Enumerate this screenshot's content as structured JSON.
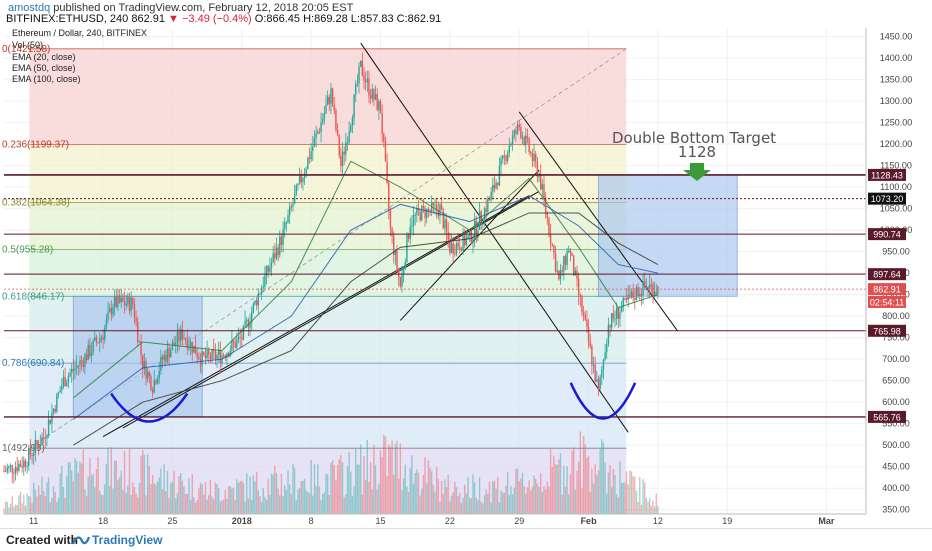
{
  "header": {
    "user": "amostdq",
    "published": "published on TradingView.com, February 12, 2018 20:05 EST",
    "symbol": "BITFINEX:ETHUSD, 240",
    "last": "862.91",
    "change": "▼ −3.49 (−0.4%)",
    "ohlc": "O:866.45 H:869.28 L:857.83 C:862.91"
  },
  "legend": {
    "title": "Ethereum / Dollar, 240, BITFINEX",
    "items": [
      "Vol (50)",
      "EMA (20, close)",
      "EMA (50, close)",
      "EMA (100, close)"
    ]
  },
  "annotation": {
    "line1": "Double Bottom Target",
    "line2": "1128"
  },
  "footer": {
    "created": "Created with",
    "brand": "TradingView"
  },
  "colors": {
    "up": "#26a69a",
    "down": "#ef5350",
    "fib_red": "#f6c7c7",
    "fib_blue": "#c9dcf2",
    "arrow": "#3b9b3b",
    "bottom_curve": "#1a1ad6"
  },
  "chart_data": {
    "type": "candlestick",
    "title": "Ethereum / Dollar, 240, BITFINEX",
    "y_axis": {
      "ticks": [
        350,
        400,
        450,
        500,
        550,
        600,
        650,
        700,
        750,
        800,
        850,
        900,
        950,
        1000,
        1050,
        1100,
        1150,
        1200,
        1250,
        1300,
        1350,
        1400,
        1450
      ],
      "ylim": [
        340,
        1470
      ]
    },
    "x_axis": {
      "ticks": [
        "11",
        "18",
        "25",
        "2018",
        "8",
        "15",
        "22",
        "29",
        "Feb",
        "12",
        "19",
        "Mar"
      ],
      "range": [
        "2017-12-08",
        "2018-03-05"
      ]
    },
    "price_labels": [
      {
        "label": "1128.43",
        "value": 1128.43
      },
      {
        "label": "1073.20",
        "value": 1073.2
      },
      {
        "label": "990.74",
        "value": 990.74
      },
      {
        "label": "897.64",
        "value": 897.64
      },
      {
        "label": "862.91",
        "value": 862.91,
        "current": true
      },
      {
        "label": "02:54:11",
        "value": 833
      },
      {
        "label": "765.98",
        "value": 765.98
      },
      {
        "label": "565.76",
        "value": 565.76
      }
    ],
    "fib_levels": [
      {
        "label": "0(1421.58)",
        "value": 1421.58
      },
      {
        "label": "0.236(1199.37)",
        "value": 1199.37
      },
      {
        "label": "0.382(1064.38)",
        "value": 1064.38
      },
      {
        "label": "0.5(955.28)",
        "value": 955.28
      },
      {
        "label": "0.618(846.17)",
        "value": 846.17
      },
      {
        "label": "0.786(690.84)",
        "value": 690.84
      },
      {
        "label": "1(492.99)",
        "value": 492.99
      }
    ],
    "close_path": [
      [
        "2017-12-08",
        440
      ],
      [
        "2017-12-10",
        460
      ],
      [
        "2017-12-12",
        520
      ],
      [
        "2017-12-14",
        650
      ],
      [
        "2017-12-16",
        700
      ],
      [
        "2017-12-18",
        760
      ],
      [
        "2017-12-19",
        830
      ],
      [
        "2017-12-21",
        830
      ],
      [
        "2017-12-22",
        690
      ],
      [
        "2017-12-23",
        640
      ],
      [
        "2017-12-24",
        700
      ],
      [
        "2017-12-26",
        760
      ],
      [
        "2017-12-28",
        700
      ],
      [
        "2017-12-30",
        710
      ],
      [
        "2018-01-01",
        750
      ],
      [
        "2018-01-03",
        870
      ],
      [
        "2018-01-05",
        980
      ],
      [
        "2018-01-07",
        1120
      ],
      [
        "2018-01-09",
        1250
      ],
      [
        "2018-01-10",
        1320
      ],
      [
        "2018-01-11",
        1150
      ],
      [
        "2018-01-12",
        1260
      ],
      [
        "2018-01-13",
        1380
      ],
      [
        "2018-01-14",
        1320
      ],
      [
        "2018-01-15",
        1280
      ],
      [
        "2018-01-16",
        1000
      ],
      [
        "2018-01-17",
        870
      ],
      [
        "2018-01-18",
        1020
      ],
      [
        "2018-01-19",
        1040
      ],
      [
        "2018-01-21",
        1050
      ],
      [
        "2018-01-22",
        960
      ],
      [
        "2018-01-24",
        980
      ],
      [
        "2018-01-26",
        1070
      ],
      [
        "2018-01-28",
        1200
      ],
      [
        "2018-01-29",
        1240
      ],
      [
        "2018-01-31",
        1130
      ],
      [
        "2018-02-02",
        880
      ],
      [
        "2018-02-03",
        960
      ],
      [
        "2018-02-05",
        740
      ],
      [
        "2018-02-06",
        620
      ],
      [
        "2018-02-07",
        780
      ],
      [
        "2018-02-08",
        810
      ],
      [
        "2018-02-10",
        860
      ],
      [
        "2018-02-11",
        870
      ],
      [
        "2018-02-12",
        863
      ]
    ],
    "ema_20": [
      [
        "2017-12-15",
        610
      ],
      [
        "2017-12-22",
        740
      ],
      [
        "2017-12-30",
        720
      ],
      [
        "2018-01-06",
        880
      ],
      [
        "2018-01-12",
        1160
      ],
      [
        "2018-01-17",
        1100
      ],
      [
        "2018-01-24",
        1000
      ],
      [
        "2018-01-30",
        1120
      ],
      [
        "2018-02-04",
        960
      ],
      [
        "2018-02-08",
        820
      ],
      [
        "2018-02-12",
        850
      ]
    ],
    "ema_50": [
      [
        "2017-12-15",
        560
      ],
      [
        "2017-12-22",
        680
      ],
      [
        "2017-12-30",
        700
      ],
      [
        "2018-01-06",
        800
      ],
      [
        "2018-01-12",
        1000
      ],
      [
        "2018-01-17",
        1060
      ],
      [
        "2018-01-24",
        1020
      ],
      [
        "2018-01-30",
        1080
      ],
      [
        "2018-02-04",
        1010
      ],
      [
        "2018-02-08",
        920
      ],
      [
        "2018-02-12",
        900
      ]
    ],
    "ema_100": [
      [
        "2017-12-15",
        500
      ],
      [
        "2017-12-22",
        600
      ],
      [
        "2017-12-30",
        650
      ],
      [
        "2018-01-06",
        720
      ],
      [
        "2018-01-12",
        880
      ],
      [
        "2018-01-17",
        960
      ],
      [
        "2018-01-24",
        980
      ],
      [
        "2018-01-30",
        1040
      ],
      [
        "2018-02-04",
        1040
      ],
      [
        "2018-02-08",
        970
      ],
      [
        "2018-02-12",
        920
      ]
    ],
    "volume_sample": [
      [
        "2017-12-10",
        10
      ],
      [
        "2017-12-17",
        28
      ],
      [
        "2017-12-22",
        25
      ],
      [
        "2017-12-29",
        14
      ],
      [
        "2018-01-05",
        20
      ],
      [
        "2018-01-10",
        22
      ],
      [
        "2018-01-16",
        35
      ],
      [
        "2018-01-22",
        15
      ],
      [
        "2018-01-29",
        18
      ],
      [
        "2018-02-05",
        35
      ],
      [
        "2018-02-12",
        8
      ]
    ],
    "rectangles": [
      {
        "x0": "2017-12-15",
        "x1": "2017-12-28",
        "y0": 565.76,
        "y1": 846.17
      },
      {
        "x0": "2018-02-06",
        "x1": "2018-02-20",
        "y0": 846.17,
        "y1": 1128.43
      }
    ]
  }
}
